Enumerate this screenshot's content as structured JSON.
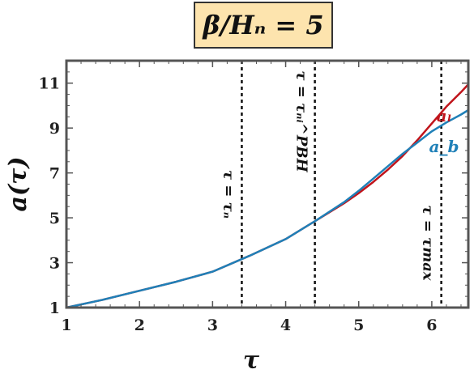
{
  "chart_data": {
    "type": "line",
    "title": "β/Hₙ = 5",
    "xlabel": "τ",
    "ylabel": "a(τ)",
    "xlim": [
      1,
      6.5
    ],
    "ylim": [
      1,
      12
    ],
    "xticks": [
      1,
      2,
      3,
      4,
      5,
      6
    ],
    "yticks": [
      1,
      3,
      5,
      7,
      9,
      11
    ],
    "series": [
      {
        "name": "aₗ",
        "color": "#c0141b",
        "x": [
          1.0,
          1.5,
          2.0,
          2.5,
          3.0,
          3.5,
          4.0,
          4.4,
          4.8,
          5.0,
          5.2,
          5.4,
          5.6,
          5.8,
          6.0,
          6.2,
          6.4,
          6.5
        ],
        "y": [
          1.0,
          1.35,
          1.75,
          2.15,
          2.6,
          3.3,
          4.05,
          4.85,
          5.65,
          6.1,
          6.6,
          7.15,
          7.75,
          8.45,
          9.2,
          9.95,
          10.6,
          10.95
        ]
      },
      {
        "name": "a_b",
        "color": "#1f80b8",
        "x": [
          1.0,
          1.5,
          2.0,
          2.5,
          3.0,
          3.5,
          4.0,
          4.4,
          4.8,
          5.0,
          5.2,
          5.4,
          5.6,
          5.8,
          6.0,
          6.2,
          6.4,
          6.5
        ],
        "y": [
          1.0,
          1.35,
          1.75,
          2.15,
          2.6,
          3.3,
          4.05,
          4.85,
          5.7,
          6.2,
          6.75,
          7.3,
          7.85,
          8.35,
          8.85,
          9.25,
          9.6,
          9.8
        ]
      }
    ],
    "vlines": [
      {
        "x": 3.4,
        "label": "τ = τₙ"
      },
      {
        "x": 4.4,
        "label": "τ = τₙᵢ^PBH"
      },
      {
        "x": 6.13,
        "label": "τ = τmax"
      }
    ]
  }
}
